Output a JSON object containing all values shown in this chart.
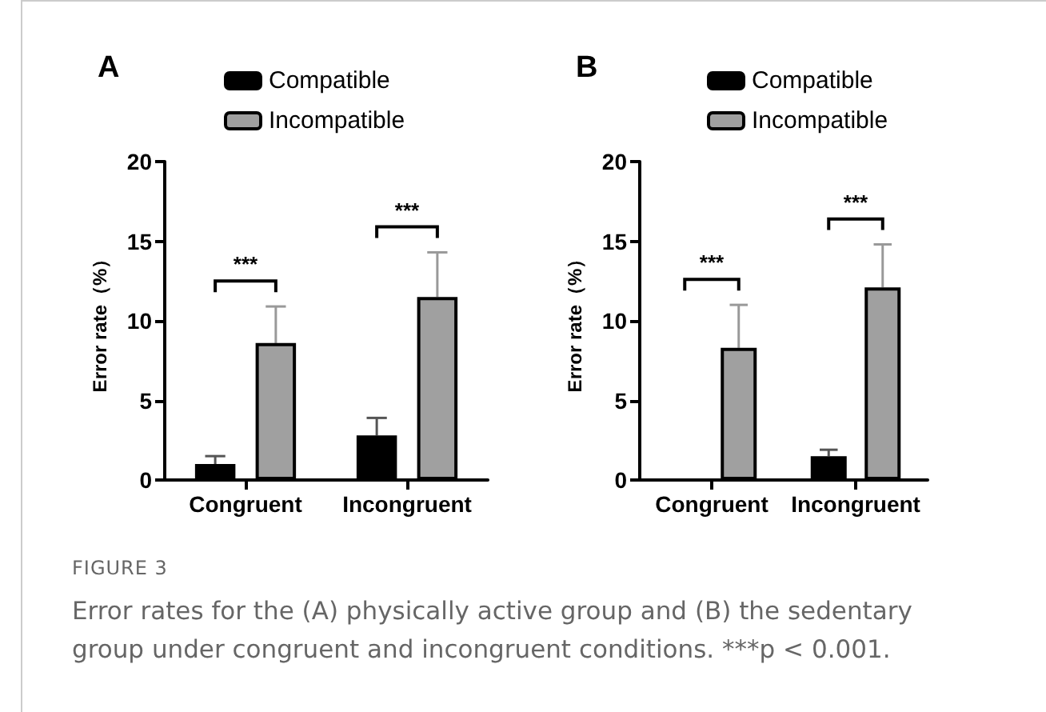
{
  "chart_data": [
    {
      "type": "bar",
      "title": "A",
      "ylabel": "Error rate（%）",
      "categories": [
        "Congruent",
        "Incongruent"
      ],
      "series": [
        {
          "name": "Compatible",
          "color": "#000000",
          "values": [
            1.0,
            2.8
          ],
          "errors": [
            [
              1.0,
              1.5
            ],
            [
              2.8,
              3.9
            ]
          ]
        },
        {
          "name": "Incompatible",
          "color": "#a0a0a0",
          "values": [
            8.6,
            11.5
          ],
          "errors": [
            [
              8.6,
              10.9
            ],
            [
              11.5,
              14.3
            ]
          ]
        }
      ],
      "ylim": [
        0,
        20
      ],
      "yticks": [
        0,
        5,
        10,
        15,
        20
      ],
      "grid": false,
      "legend": "top",
      "annotations": [
        "***",
        "***",
        "FIGURE 3",
        "Error rates for the (A) physically active group and (B) the sedentary group under congruent and incongruent conditions. ***p < 0.001."
      ]
    },
    {
      "type": "bar",
      "title": "B",
      "ylabel": "Error rate（%）",
      "categories": [
        "Congruent",
        "Incongruent"
      ],
      "series": [
        {
          "name": "Compatible",
          "color": "#000000",
          "values": [
            0,
            1.5
          ],
          "errors": [
            null,
            [
              1.5,
              1.9
            ]
          ]
        },
        {
          "name": "Incompatible",
          "color": "#a0a0a0",
          "values": [
            8.3,
            12.1
          ],
          "errors": [
            [
              8.3,
              11.0
            ],
            [
              12.1,
              14.8
            ]
          ]
        }
      ],
      "ylim": [
        0,
        20
      ],
      "yticks": [
        0,
        5,
        10,
        15,
        20
      ],
      "grid": false,
      "legend": "top",
      "annotations": [
        "***",
        "***"
      ]
    }
  ]
}
